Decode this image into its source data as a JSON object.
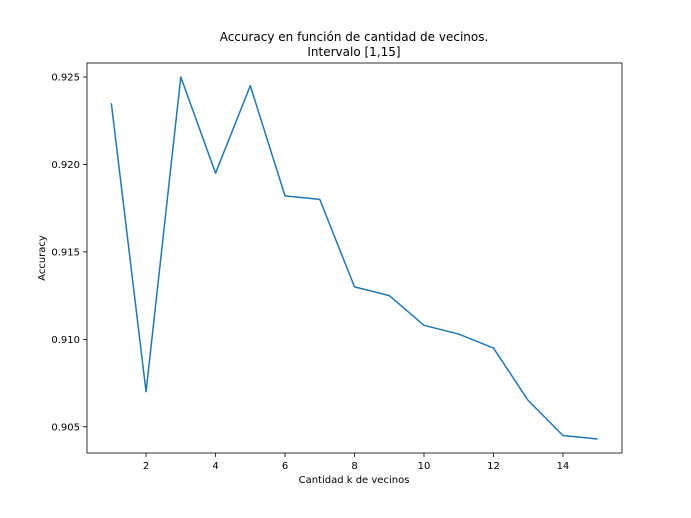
{
  "chart_data": {
    "type": "line",
    "title": "Accuracy en función de cantidad de vecinos.",
    "subtitle": "Intervalo [1,15]",
    "xlabel": "Cantidad k de vecinos",
    "ylabel": "Accuracy",
    "xlim": [
      0.3,
      15.7
    ],
    "ylim": [
      0.9035,
      0.9258
    ],
    "xticks": [
      2,
      4,
      6,
      8,
      10,
      12,
      14
    ],
    "xtick_labels": [
      "2",
      "4",
      "6",
      "8",
      "10",
      "12",
      "14"
    ],
    "yticks": [
      0.905,
      0.91,
      0.915,
      0.92,
      0.925
    ],
    "ytick_labels": [
      "0.905",
      "0.910",
      "0.915",
      "0.920",
      "0.925"
    ],
    "grid": false,
    "series": [
      {
        "color": "#1f77b4",
        "x": [
          1,
          2,
          3,
          4,
          5,
          6,
          7,
          8,
          9,
          10,
          11,
          12,
          13,
          14,
          15
        ],
        "y": [
          0.9235,
          0.907,
          0.925,
          0.9195,
          0.9245,
          0.9182,
          0.918,
          0.913,
          0.9125,
          0.9108,
          0.9103,
          0.9095,
          0.9065,
          0.9045,
          0.9043
        ]
      }
    ]
  }
}
